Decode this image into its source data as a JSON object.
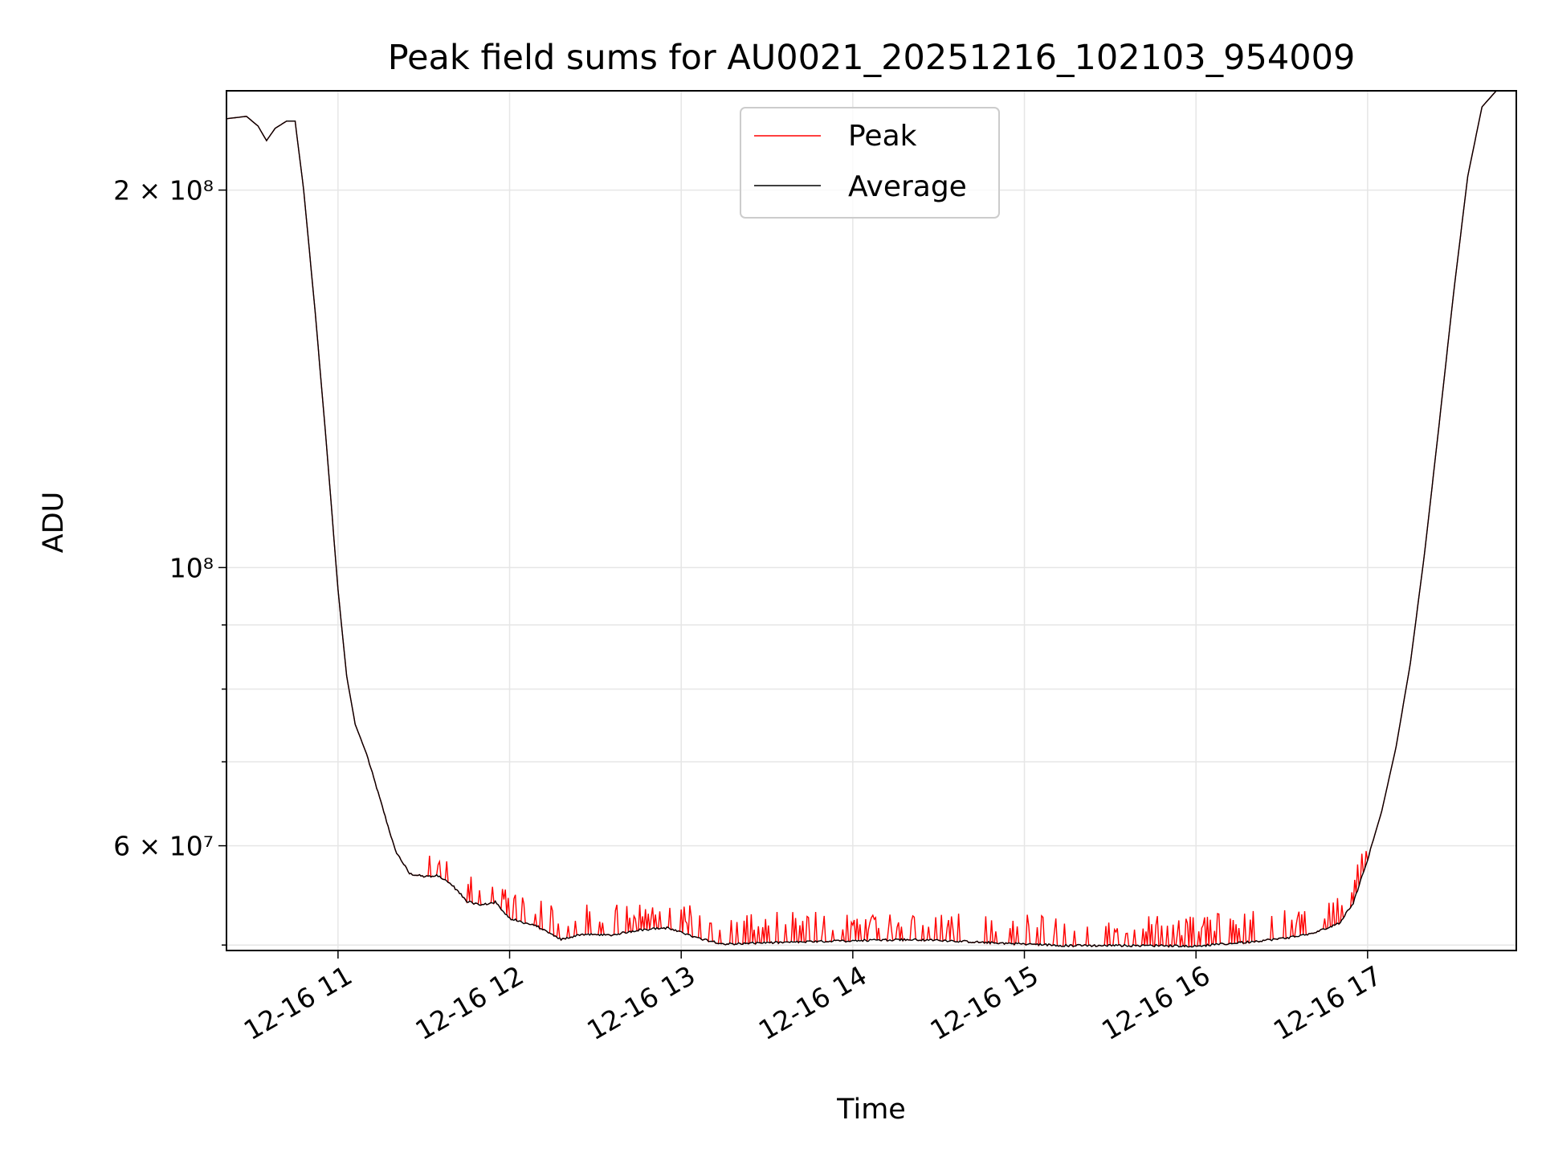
{
  "chart_data": {
    "type": "line",
    "title": "Peak field sums for AU0021_20251216_102103_954009",
    "xlabel": "Time",
    "ylabel": "ADU",
    "x_scale": "time",
    "y_scale": "log",
    "xlim": [
      "2025-12-16 10:21",
      "2025-12-16 17:52"
    ],
    "ylim": [
      49500000,
      240000000
    ],
    "grid": true,
    "legend_position": "top-center",
    "x_ticks": [
      "12-16 11",
      "12-16 12",
      "12-16 13",
      "12-16 14",
      "12-16 15",
      "12-16 16",
      "12-16 17"
    ],
    "y_tick_labels": {
      "major": [
        "2 × 10⁸",
        "10⁸",
        "6 × 10⁷"
      ]
    },
    "series": [
      {
        "name": "Peak",
        "color": "#ff0000",
        "spikes": "frequent short upward spikes of roughly 1–3 × 10⁶ ADU above Average between 12-16 11:30 and 12-16 17:00"
      },
      {
        "name": "Average",
        "color": "#000000",
        "points": [
          [
            "2025-12-16 10:21",
            228000000
          ],
          [
            "2025-12-16 10:28",
            229000000
          ],
          [
            "2025-12-16 10:32",
            225000000
          ],
          [
            "2025-12-16 10:35",
            219000000
          ],
          [
            "2025-12-16 10:38",
            224000000
          ],
          [
            "2025-12-16 10:42",
            227000000
          ],
          [
            "2025-12-16 10:45",
            227000000
          ],
          [
            "2025-12-16 10:48",
            200000000
          ],
          [
            "2025-12-16 10:52",
            160000000
          ],
          [
            "2025-12-16 10:56",
            125000000
          ],
          [
            "2025-12-16 11:00",
            96000000
          ],
          [
            "2025-12-16 11:03",
            82000000
          ],
          [
            "2025-12-16 11:06",
            75000000
          ],
          [
            "2025-12-16 11:10",
            71000000
          ],
          [
            "2025-12-16 11:15",
            65000000
          ],
          [
            "2025-12-16 11:20",
            59500000
          ],
          [
            "2025-12-16 11:25",
            57000000
          ],
          [
            "2025-12-16 11:30",
            56700000
          ],
          [
            "2025-12-16 11:35",
            56800000
          ],
          [
            "2025-12-16 11:40",
            55800000
          ],
          [
            "2025-12-16 11:45",
            54200000
          ],
          [
            "2025-12-16 11:50",
            53800000
          ],
          [
            "2025-12-16 11:55",
            54100000
          ],
          [
            "2025-12-16 12:00",
            52500000
          ],
          [
            "2025-12-16 12:10",
            51700000
          ],
          [
            "2025-12-16 12:18",
            50500000
          ],
          [
            "2025-12-16 12:25",
            51000000
          ],
          [
            "2025-12-16 12:35",
            50900000
          ],
          [
            "2025-12-16 12:45",
            51400000
          ],
          [
            "2025-12-16 12:55",
            51600000
          ],
          [
            "2025-12-16 13:05",
            50700000
          ],
          [
            "2025-12-16 13:15",
            50100000
          ],
          [
            "2025-12-16 13:30",
            50200000
          ],
          [
            "2025-12-16 13:45",
            50300000
          ],
          [
            "2025-12-16 14:00",
            50400000
          ],
          [
            "2025-12-16 14:15",
            50500000
          ],
          [
            "2025-12-16 14:30",
            50450000
          ],
          [
            "2025-12-16 14:45",
            50250000
          ],
          [
            "2025-12-16 15:00",
            50100000
          ],
          [
            "2025-12-16 15:15",
            49950000
          ],
          [
            "2025-12-16 15:30",
            49950000
          ],
          [
            "2025-12-16 15:45",
            49950000
          ],
          [
            "2025-12-16 16:00",
            49900000
          ],
          [
            "2025-12-16 16:15",
            50200000
          ],
          [
            "2025-12-16 16:30",
            50600000
          ],
          [
            "2025-12-16 16:40",
            51000000
          ],
          [
            "2025-12-16 16:50",
            52000000
          ],
          [
            "2025-12-16 16:55",
            54000000
          ],
          [
            "2025-12-16 17:00",
            58500000
          ],
          [
            "2025-12-16 17:05",
            64000000
          ],
          [
            "2025-12-16 17:10",
            72000000
          ],
          [
            "2025-12-16 17:15",
            84000000
          ],
          [
            "2025-12-16 17:20",
            103000000
          ],
          [
            "2025-12-16 17:25",
            130000000
          ],
          [
            "2025-12-16 17:30",
            165000000
          ],
          [
            "2025-12-16 17:35",
            205000000
          ],
          [
            "2025-12-16 17:40",
            233000000
          ],
          [
            "2025-12-16 17:45",
            240000000
          ],
          [
            "2025-12-16 17:52",
            240000000
          ]
        ]
      }
    ]
  }
}
